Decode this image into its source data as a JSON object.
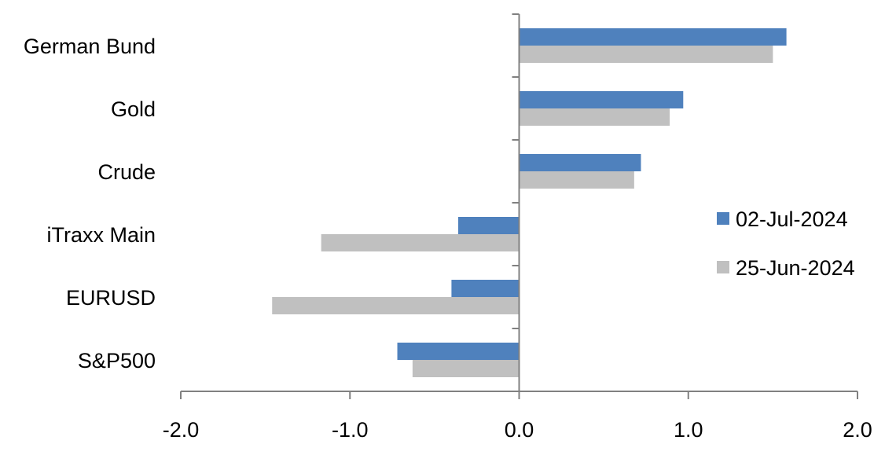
{
  "chart_data": {
    "type": "bar",
    "orientation": "horizontal",
    "title": "",
    "xlabel": "",
    "ylabel": "",
    "categories": [
      "German Bund",
      "Gold",
      "Crude",
      "iTraxx Main",
      "EURUSD",
      "S&P500"
    ],
    "series": [
      {
        "name": "02-Jul-2024",
        "color": "#4F81BD",
        "values": [
          1.58,
          0.97,
          0.72,
          -0.36,
          -0.4,
          -0.72
        ]
      },
      {
        "name": "25-Jun-2024",
        "color": "#C0C0C0",
        "values": [
          1.5,
          0.89,
          0.68,
          -1.17,
          -1.46,
          -0.63
        ]
      }
    ],
    "xlim": [
      -2.0,
      2.0
    ],
    "xticks": [
      "-2.0",
      "-1.0",
      "0.0",
      "1.0",
      "2.0"
    ],
    "grid": false,
    "legend_position": "right"
  }
}
